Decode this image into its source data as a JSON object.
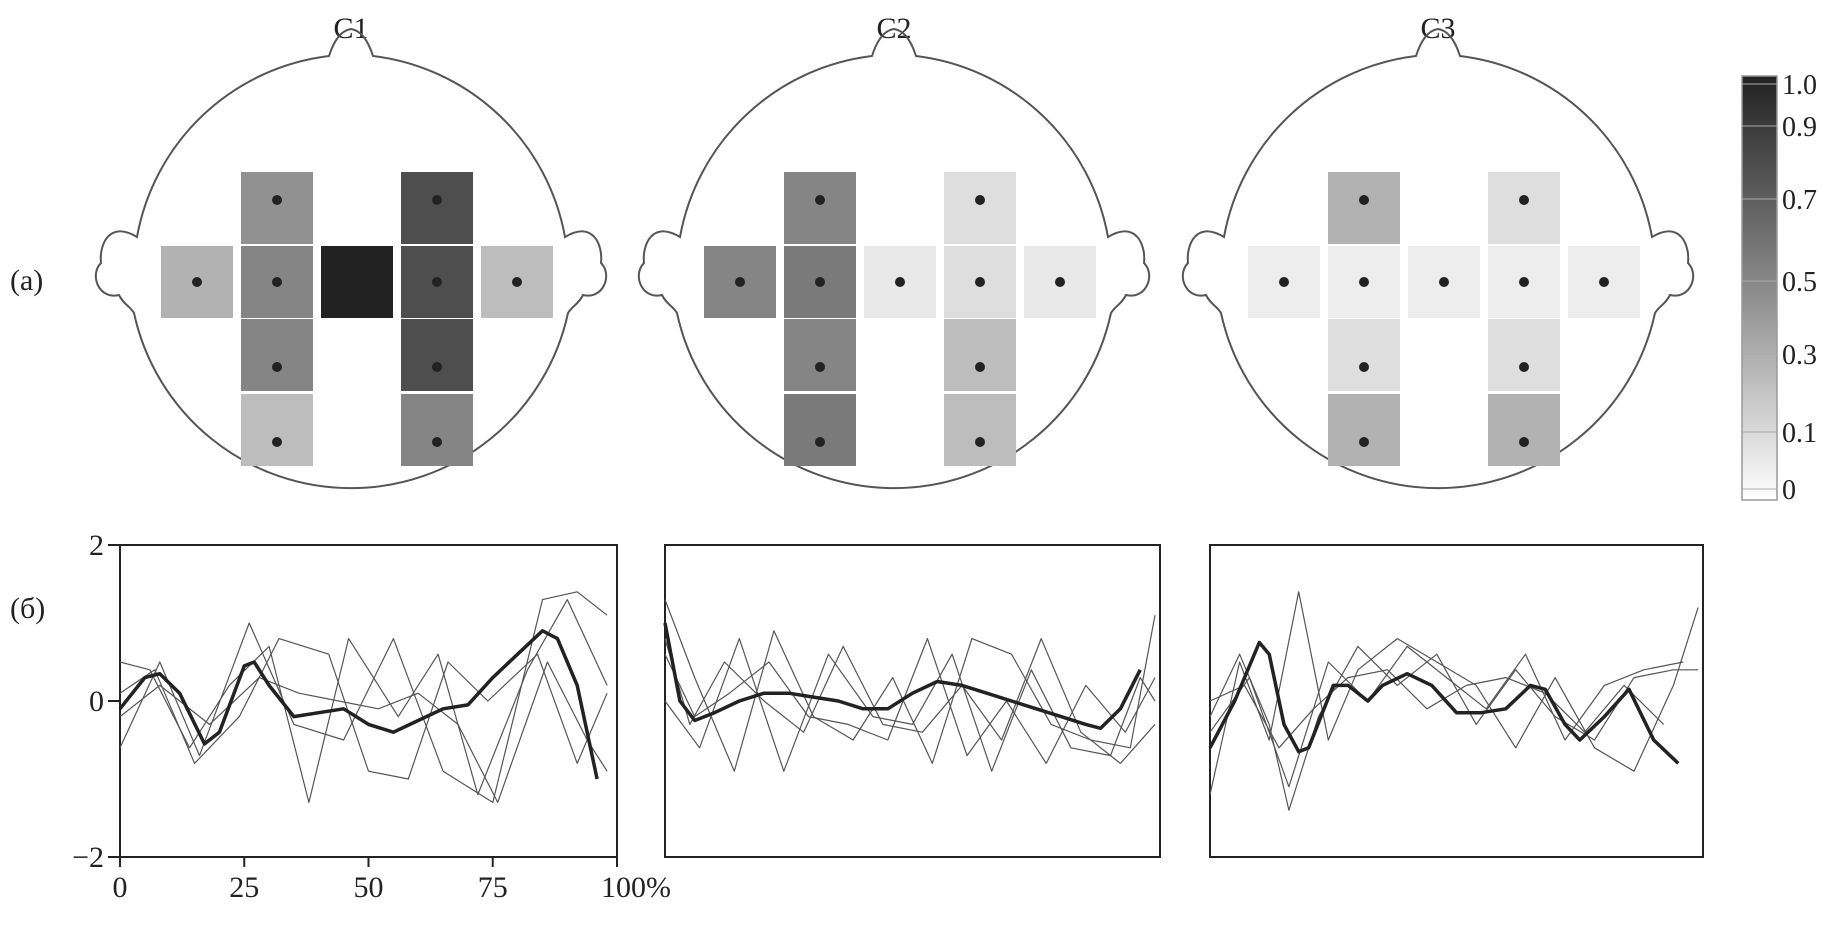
{
  "panel_labels": {
    "a": "(a)",
    "b": "(б)"
  },
  "colorbar": {
    "ticks": [
      "1.0",
      "0.9",
      "0.7",
      "0.5",
      "0.3",
      "0.1",
      "0"
    ],
    "range": [
      0,
      1
    ],
    "colormap": [
      "#ffffff",
      "#222222"
    ]
  },
  "chart_data": [
    {
      "type": "heatmap",
      "description_of_grid": "topographic head map, electrode weights (5 columns x 4 rows, cross layout)",
      "maps": [
        {
          "title": "C1",
          "cells": [
            {
              "col": 2,
              "row": 1,
              "value": 0.5
            },
            {
              "col": 4,
              "row": 1,
              "value": 0.8
            },
            {
              "col": 1,
              "row": 2,
              "value": 0.35
            },
            {
              "col": 2,
              "row": 2,
              "value": 0.55
            },
            {
              "col": 3,
              "row": 2,
              "value": 1.0
            },
            {
              "col": 4,
              "row": 2,
              "value": 0.8
            },
            {
              "col": 5,
              "row": 2,
              "value": 0.3
            },
            {
              "col": 2,
              "row": 3,
              "value": 0.55
            },
            {
              "col": 4,
              "row": 3,
              "value": 0.8
            },
            {
              "col": 2,
              "row": 4,
              "value": 0.3
            },
            {
              "col": 4,
              "row": 4,
              "value": 0.55
            }
          ]
        },
        {
          "title": "C2",
          "cells": [
            {
              "col": 2,
              "row": 1,
              "value": 0.55
            },
            {
              "col": 4,
              "row": 1,
              "value": 0.15
            },
            {
              "col": 1,
              "row": 2,
              "value": 0.55
            },
            {
              "col": 2,
              "row": 2,
              "value": 0.6
            },
            {
              "col": 3,
              "row": 2,
              "value": 0.1
            },
            {
              "col": 4,
              "row": 2,
              "value": 0.15
            },
            {
              "col": 5,
              "row": 2,
              "value": 0.1
            },
            {
              "col": 2,
              "row": 3,
              "value": 0.55
            },
            {
              "col": 4,
              "row": 3,
              "value": 0.3
            },
            {
              "col": 2,
              "row": 4,
              "value": 0.6
            },
            {
              "col": 4,
              "row": 4,
              "value": 0.3
            }
          ]
        },
        {
          "title": "C3",
          "cells": [
            {
              "col": 2,
              "row": 1,
              "value": 0.35
            },
            {
              "col": 4,
              "row": 1,
              "value": 0.15
            },
            {
              "col": 1,
              "row": 2,
              "value": 0.08
            },
            {
              "col": 2,
              "row": 2,
              "value": 0.08
            },
            {
              "col": 3,
              "row": 2,
              "value": 0.08
            },
            {
              "col": 4,
              "row": 2,
              "value": 0.08
            },
            {
              "col": 5,
              "row": 2,
              "value": 0.08
            },
            {
              "col": 2,
              "row": 3,
              "value": 0.15
            },
            {
              "col": 4,
              "row": 3,
              "value": 0.15
            },
            {
              "col": 2,
              "row": 4,
              "value": 0.35
            },
            {
              "col": 4,
              "row": 4,
              "value": 0.35
            }
          ]
        }
      ]
    },
    {
      "type": "line",
      "xlim": [
        0,
        100
      ],
      "ylim": [
        -2,
        2
      ],
      "xticks": [
        "0",
        "25",
        "50",
        "75",
        "100%"
      ],
      "xtick_values": [
        0,
        25,
        50,
        75,
        100
      ],
      "yticks": [
        "2",
        "0",
        "−2"
      ],
      "ytick_values": [
        2,
        0,
        -2
      ],
      "panels": [
        {
          "mean": {
            "x": [
              0,
              5,
              8,
              12,
              17,
              20,
              25,
              27,
              30,
              35,
              40,
              45,
              50,
              55,
              60,
              65,
              70,
              75,
              80,
              85,
              88,
              92,
              96
            ],
            "y": [
              -0.1,
              0.3,
              0.35,
              0.1,
              -0.55,
              -0.4,
              0.45,
              0.5,
              0.2,
              -0.2,
              -0.15,
              -0.1,
              -0.3,
              -0.4,
              -0.25,
              -0.1,
              -0.05,
              0.3,
              0.6,
              0.9,
              0.8,
              0.2,
              -1.0
            ]
          },
          "traces": [
            {
              "x": [
                0,
                8,
                16,
                26,
                35,
                45,
                55,
                65,
                75,
                85,
                92,
                98
              ],
              "y": [
                -0.6,
                0.5,
                -0.7,
                1.0,
                -0.3,
                -0.5,
                0.8,
                -0.9,
                -1.3,
                1.3,
                1.4,
                1.1
              ]
            },
            {
              "x": [
                0,
                6,
                14,
                22,
                30,
                38,
                46,
                56,
                64,
                72,
                82,
                90,
                98
              ],
              "y": [
                0.5,
                0.4,
                -0.6,
                0.2,
                0.7,
                -1.3,
                0.8,
                -0.2,
                0.6,
                -1.2,
                0.4,
                1.3,
                0.2
              ]
            },
            {
              "x": [
                0,
                8,
                18,
                28,
                36,
                44,
                52,
                60,
                68,
                76,
                86,
                94,
                98
              ],
              "y": [
                -0.2,
                0.2,
                -0.3,
                0.3,
                0.1,
                0.0,
                -0.1,
                0.1,
                -0.3,
                -1.3,
                0.5,
                -0.5,
                -0.9
              ]
            },
            {
              "x": [
                0,
                7,
                15,
                24,
                32,
                42,
                50,
                58,
                66,
                74,
                84,
                92,
                98
              ],
              "y": [
                0.1,
                0.4,
                -0.8,
                -0.2,
                0.8,
                0.6,
                -0.9,
                -1.0,
                0.5,
                0.0,
                0.6,
                -0.8,
                0.1
              ]
            }
          ]
        },
        {
          "mean": {
            "x": [
              0,
              3,
              6,
              10,
              15,
              20,
              25,
              30,
              35,
              40,
              45,
              50,
              55,
              60,
              65,
              70,
              75,
              80,
              85,
              88,
              92,
              96
            ],
            "y": [
              1.0,
              0.0,
              -0.25,
              -0.15,
              0.0,
              0.1,
              0.1,
              0.05,
              0.0,
              -0.1,
              -0.1,
              0.1,
              0.25,
              0.2,
              0.1,
              0.0,
              -0.1,
              -0.2,
              -0.3,
              -0.35,
              -0.1,
              0.4
            ]
          },
          "traces": [
            {
              "x": [
                0,
                6,
                14,
                22,
                30,
                38,
                46,
                54,
                62,
                70,
                78,
                86,
                94,
                99
              ],
              "y": [
                1.3,
                0.3,
                -0.9,
                0.9,
                -0.2,
                -0.5,
                0.3,
                -0.8,
                0.8,
                0.6,
                -0.3,
                -0.5,
                -0.6,
                1.1
              ]
            },
            {
              "x": [
                0,
                5,
                12,
                20,
                28,
                36,
                44,
                52,
                60,
                68,
                76,
                84,
                92,
                99
              ],
              "y": [
                0.8,
                -0.3,
                0.5,
                0.0,
                -0.4,
                0.7,
                -0.3,
                -0.4,
                0.2,
                -0.5,
                0.8,
                -0.4,
                -0.8,
                -0.3
              ]
            },
            {
              "x": [
                0,
                7,
                15,
                24,
                33,
                42,
                50,
                58,
                66,
                74,
                82,
                90,
                96,
                99
              ],
              "y": [
                0.0,
                -0.6,
                0.8,
                -0.9,
                0.6,
                -0.2,
                -0.3,
                0.6,
                -0.9,
                0.4,
                -0.6,
                -0.7,
                0.3,
                0.0
              ]
            },
            {
              "x": [
                0,
                6,
                13,
                21,
                29,
                37,
                45,
                53,
                61,
                69,
                77,
                85,
                93,
                99
              ],
              "y": [
                0.6,
                -0.2,
                0.1,
                0.5,
                -0.2,
                -0.3,
                -0.5,
                0.8,
                -0.7,
                0.0,
                -0.8,
                0.2,
                -0.4,
                0.3
              ]
            }
          ]
        },
        {
          "mean": {
            "x": [
              0,
              5,
              10,
              12,
              15,
              18,
              20,
              25,
              28,
              32,
              35,
              40,
              45,
              50,
              55,
              60,
              65,
              68,
              72,
              75,
              80,
              85,
              90,
              95
            ],
            "y": [
              -0.6,
              0.0,
              0.75,
              0.6,
              -0.3,
              -0.65,
              -0.6,
              0.2,
              0.2,
              0.0,
              0.2,
              0.35,
              0.2,
              -0.15,
              -0.15,
              -0.1,
              0.2,
              0.15,
              -0.3,
              -0.5,
              -0.2,
              0.15,
              -0.5,
              -0.8
            ]
          },
          "traces": [
            {
              "x": [
                0,
                6,
                12,
                18,
                24,
                30,
                38,
                46,
                54,
                62,
                70,
                78,
                86,
                94,
                99
              ],
              "y": [
                -1.2,
                0.5,
                -0.5,
                1.4,
                -0.5,
                0.4,
                0.8,
                0.5,
                0.2,
                -0.6,
                0.3,
                -0.6,
                -0.9,
                0.2,
                1.2
              ]
            },
            {
              "x": [
                0,
                6,
                12,
                16,
                22,
                30,
                38,
                46,
                54,
                62,
                70,
                78,
                86,
                94,
                99
              ],
              "y": [
                -0.2,
                0.6,
                -0.3,
                -1.4,
                -0.2,
                0.7,
                0.2,
                0.6,
                -0.3,
                0.4,
                -0.2,
                -0.5,
                0.3,
                0.4,
                0.4
              ]
            },
            {
              "x": [
                0,
                8,
                16,
                24,
                32,
                40,
                48,
                56,
                64,
                72,
                80,
                88,
                96
              ],
              "y": [
                -0.4,
                0.3,
                -1.1,
                0.5,
                0.0,
                0.7,
                0.3,
                -0.1,
                0.6,
                -0.5,
                0.2,
                0.4,
                0.5
              ]
            },
            {
              "x": [
                0,
                7,
                14,
                21,
                28,
                36,
                44,
                52,
                60,
                68,
                76,
                84,
                92
              ],
              "y": [
                0.0,
                0.2,
                -0.6,
                -0.1,
                0.3,
                0.4,
                -0.1,
                0.2,
                0.3,
                0.1,
                -0.4,
                0.2,
                -0.3
              ]
            }
          ]
        }
      ]
    }
  ]
}
